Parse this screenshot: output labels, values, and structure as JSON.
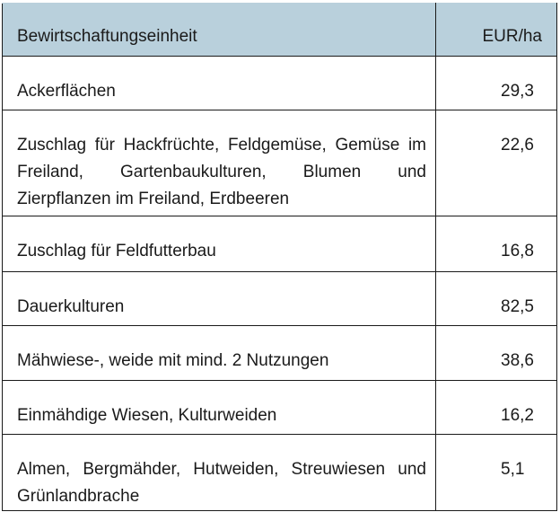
{
  "table": {
    "header_bg": "#b9d0dc",
    "columns": [
      "Bewirtschaftungseinheit",
      "EUR/ha"
    ],
    "rows": [
      {
        "label": "Ackerflächen",
        "value": "29,3"
      },
      {
        "label": "Zuschlag für Hackfrüchte, Feldgemüse, Gemüse im Freiland, Gartenbaukulturen, Blumen und Zierpflanzen im Freiland, Erdbeeren",
        "value": "22,6"
      },
      {
        "label": "Zuschlag für Feldfutterbau",
        "value": "16,8"
      },
      {
        "label": "Dauerkulturen",
        "value": "82,5"
      },
      {
        "label": "Mähwiese-, weide mit mind. 2 Nutzungen",
        "value": "38,6"
      },
      {
        "label": "Einmähdige Wiesen, Kulturweiden",
        "value": "16,2"
      },
      {
        "label": "Almen, Bergmähder, Hutweiden, Streuwiesen und Grünlandbrache",
        "value": "5,1"
      }
    ]
  }
}
